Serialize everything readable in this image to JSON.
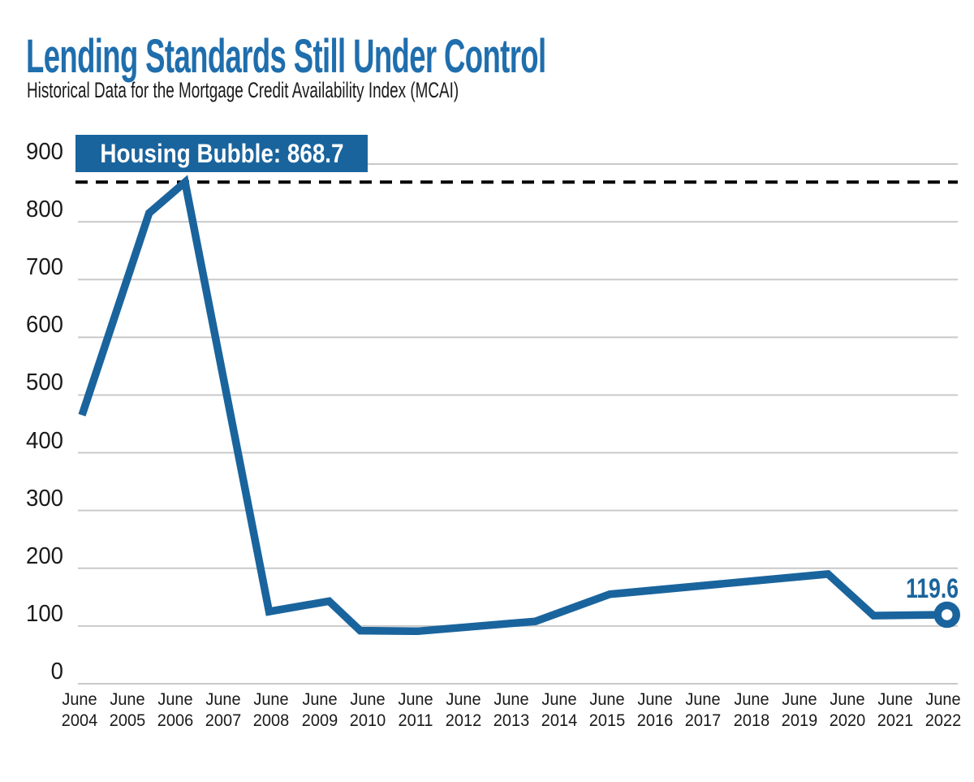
{
  "chart_data": {
    "type": "line",
    "title": "Lending Standards Still Under Control",
    "subtitle": "Historical Data for the Mortgage Credit Availability Index (MCAI)",
    "x_axis": {
      "tick_month": "June",
      "tick_years": [
        "2004",
        "2005",
        "2006",
        "2007",
        "2008",
        "2009",
        "2010",
        "2011",
        "2012",
        "2013",
        "2014",
        "2015",
        "2016",
        "2017",
        "2018",
        "2019",
        "2020",
        "2021",
        "2022"
      ]
    },
    "y_axis": {
      "ticks": [
        0,
        100,
        200,
        300,
        400,
        500,
        600,
        700,
        800,
        900
      ],
      "range": [
        0,
        900
      ],
      "grid": true
    },
    "series_name": "Mortgage Credit Availability Index (MCAI)",
    "x_unit_note": "x = years after June 2004",
    "line_points": [
      {
        "x": 0.05,
        "value": 465
      },
      {
        "x": 1.45,
        "value": 815
      },
      {
        "x": 2.2,
        "value": 868.7
      },
      {
        "x": 3.95,
        "value": 125
      },
      {
        "x": 5.2,
        "value": 143
      },
      {
        "x": 5.85,
        "value": 92
      },
      {
        "x": 7.05,
        "value": 91
      },
      {
        "x": 9.5,
        "value": 108
      },
      {
        "x": 11.05,
        "value": 155
      },
      {
        "x": 15.6,
        "value": 190
      },
      {
        "x": 16.55,
        "value": 118
      },
      {
        "x": 18.08,
        "value": 119.6
      }
    ],
    "reference_line": {
      "label": "Housing Bubble: 868.7",
      "value": 868.7,
      "style": "dashed"
    },
    "end_marker": {
      "label": "119.6",
      "value": 119.6
    },
    "legend": "none",
    "colors": {
      "line": "#1a649d",
      "title": "#1f6ead",
      "callout_bg": "#1a649d",
      "callout_text": "#ffffff",
      "end_label": "#1a649d",
      "grid": "#c9c9c9",
      "reference_line": "#000000",
      "axis_text": "#1a1a1a"
    }
  }
}
